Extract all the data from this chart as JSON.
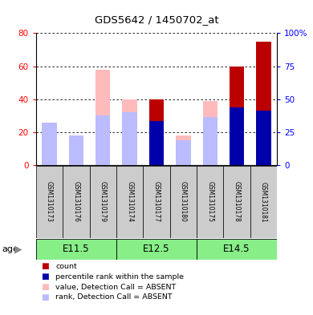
{
  "title": "GDS5642 / 1450702_at",
  "samples": [
    "GSM1310173",
    "GSM1310176",
    "GSM1310179",
    "GSM1310174",
    "GSM1310177",
    "GSM1310180",
    "GSM1310175",
    "GSM1310178",
    "GSM1310181"
  ],
  "age_groups": [
    {
      "label": "E11.5",
      "start": 0,
      "end": 3
    },
    {
      "label": "E12.5",
      "start": 3,
      "end": 6
    },
    {
      "label": "E14.5",
      "start": 6,
      "end": 9
    }
  ],
  "value_absent": [
    26,
    13,
    58,
    40,
    0,
    18,
    39,
    0,
    0
  ],
  "rank_absent": [
    26,
    18,
    30,
    32,
    0,
    15,
    29,
    0,
    0
  ],
  "count_red": [
    0,
    0,
    0,
    0,
    40,
    0,
    0,
    60,
    75
  ],
  "percentile_blue": [
    0,
    0,
    0,
    0,
    27,
    0,
    0,
    35,
    33
  ],
  "ylim_left": [
    0,
    80
  ],
  "ylim_right": [
    0,
    100
  ],
  "yticks_left": [
    0,
    20,
    40,
    60,
    80
  ],
  "yticks_right": [
    0,
    25,
    50,
    75,
    100
  ],
  "ytick_labels_right": [
    "0",
    "25",
    "50",
    "75",
    "100%"
  ],
  "color_count": "#bb0000",
  "color_percentile": "#0000aa",
  "color_value_absent": "#ffbbbb",
  "color_rank_absent": "#bbbbff",
  "color_age_bg": "#88ee88",
  "color_sample_bg": "#cccccc",
  "bar_width": 0.55
}
